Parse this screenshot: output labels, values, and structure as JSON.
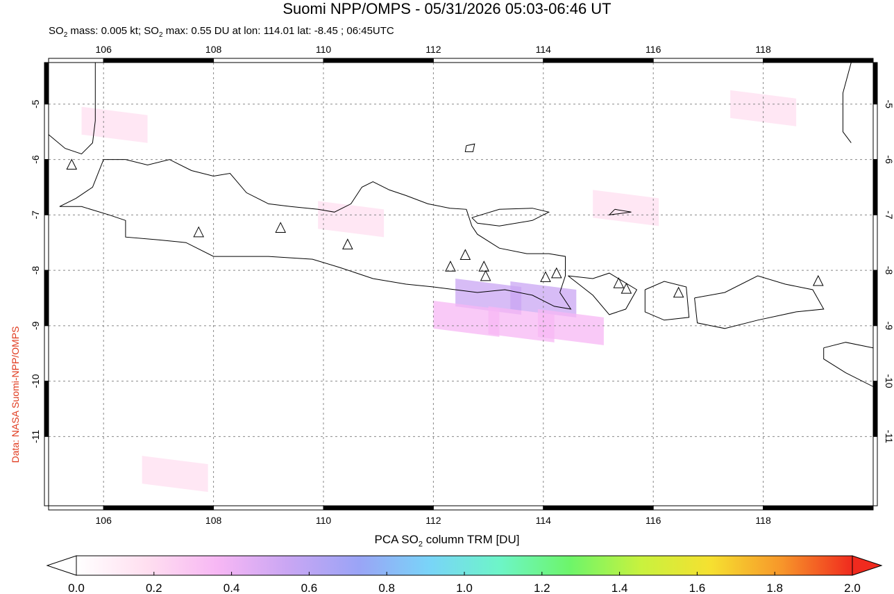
{
  "title": "Suomi NPP/OMPS - 05/31/2026 05:03-06:46 UT",
  "subtitle": {
    "so2_label": "SO",
    "so2_sub": "2",
    "mass_text": " mass: 0.005 kt; SO",
    "max_text": " max: 0.55 DU at lon: 114.01 lat: -8.45 ; 06:45UTC"
  },
  "credit": "Data: NASA Suomi-NPP/OMPS",
  "map": {
    "lon_range": [
      105,
      120
    ],
    "lat_range": [
      -12.25,
      -4.25
    ],
    "lon_ticks": [
      "106",
      "108",
      "110",
      "112",
      "114",
      "116",
      "118"
    ],
    "lat_ticks": [
      "-5",
      "-6",
      "-7",
      "-8",
      "-9",
      "-10",
      "-11"
    ],
    "lon_tick_values": [
      106,
      108,
      110,
      112,
      114,
      116,
      118
    ],
    "lat_tick_values": [
      -5,
      -6,
      -7,
      -8,
      -9,
      -10,
      -11
    ],
    "grid": "dashed",
    "volcanoes": [
      {
        "lon": 105.42,
        "lat": -6.1
      },
      {
        "lon": 107.73,
        "lat": -7.32
      },
      {
        "lon": 109.22,
        "lat": -7.24
      },
      {
        "lon": 110.44,
        "lat": -7.54
      },
      {
        "lon": 112.31,
        "lat": -7.94
      },
      {
        "lon": 112.58,
        "lat": -7.73
      },
      {
        "lon": 112.92,
        "lat": -7.94
      },
      {
        "lon": 112.95,
        "lat": -8.11
      },
      {
        "lon": 114.04,
        "lat": -8.13
      },
      {
        "lon": 114.24,
        "lat": -8.06
      },
      {
        "lon": 115.37,
        "lat": -8.24
      },
      {
        "lon": 115.51,
        "lat": -8.34
      },
      {
        "lon": 116.46,
        "lat": -8.41
      },
      {
        "lon": 119.0,
        "lat": -8.2
      }
    ]
  },
  "colorbar": {
    "title_pre": "PCA SO",
    "title_sub": "2",
    "title_post": " column TRM [DU]",
    "ticks": [
      "0.0",
      "0.2",
      "0.4",
      "0.6",
      "0.8",
      "1.0",
      "1.2",
      "1.4",
      "1.6",
      "1.8",
      "2.0"
    ],
    "tick_values": [
      0.0,
      0.2,
      0.4,
      0.6,
      0.8,
      1.0,
      1.2,
      1.4,
      1.6,
      1.8,
      2.0
    ],
    "colors": [
      "#ffffff",
      "#ffdff0",
      "#f7b7f4",
      "#c9a6f3",
      "#9aa4f6",
      "#79d4f8",
      "#6df5c8",
      "#6df56a",
      "#c8f23e",
      "#f6e030",
      "#f7962a",
      "#f02a1e"
    ],
    "under_color": "#ffffff",
    "over_color": "#f02a1e"
  },
  "so2_cells": [
    {
      "lon": 113.0,
      "lat": -8.4,
      "du": 0.55
    },
    {
      "lon": 114.0,
      "lat": -8.45,
      "du": 0.55
    },
    {
      "lon": 112.6,
      "lat": -8.8,
      "du": 0.3
    },
    {
      "lon": 113.6,
      "lat": -8.9,
      "du": 0.3
    },
    {
      "lon": 114.5,
      "lat": -8.95,
      "du": 0.3
    },
    {
      "lon": 110.5,
      "lat": -7.0,
      "du": 0.15
    },
    {
      "lon": 106.2,
      "lat": -5.3,
      "du": 0.25
    },
    {
      "lon": 107.3,
      "lat": -11.6,
      "du": 0.2
    },
    {
      "lon": 115.5,
      "lat": -6.8,
      "du": 0.15
    },
    {
      "lon": 118.0,
      "lat": -5.0,
      "du": 0.1
    }
  ],
  "coastline": {
    "java": [
      [
        105.2,
        -6.85
      ],
      [
        105.5,
        -6.7
      ],
      [
        105.8,
        -6.5
      ],
      [
        106.0,
        -6.0
      ],
      [
        106.4,
        -6.0
      ],
      [
        106.8,
        -6.1
      ],
      [
        107.2,
        -6.0
      ],
      [
        107.6,
        -6.2
      ],
      [
        108.0,
        -6.3
      ],
      [
        108.3,
        -6.25
      ],
      [
        108.6,
        -6.6
      ],
      [
        109.0,
        -6.8
      ],
      [
        109.4,
        -6.85
      ],
      [
        109.9,
        -6.9
      ],
      [
        110.2,
        -6.95
      ],
      [
        110.5,
        -6.8
      ],
      [
        110.7,
        -6.5
      ],
      [
        110.9,
        -6.4
      ],
      [
        111.2,
        -6.55
      ],
      [
        111.5,
        -6.65
      ],
      [
        111.9,
        -6.8
      ],
      [
        112.3,
        -6.88
      ],
      [
        112.6,
        -6.9
      ],
      [
        112.7,
        -7.2
      ],
      [
        112.8,
        -7.35
      ],
      [
        113.2,
        -7.6
      ],
      [
        113.7,
        -7.7
      ],
      [
        114.1,
        -7.7
      ],
      [
        114.4,
        -7.75
      ],
      [
        114.4,
        -8.1
      ],
      [
        114.3,
        -8.4
      ],
      [
        114.5,
        -8.7
      ],
      [
        114.2,
        -8.65
      ],
      [
        113.8,
        -8.45
      ],
      [
        113.3,
        -8.35
      ],
      [
        112.8,
        -8.4
      ],
      [
        112.0,
        -8.3
      ],
      [
        111.5,
        -8.25
      ],
      [
        110.9,
        -8.15
      ],
      [
        110.3,
        -7.95
      ],
      [
        109.8,
        -7.8
      ],
      [
        109.0,
        -7.75
      ],
      [
        108.4,
        -7.75
      ],
      [
        108.0,
        -7.75
      ],
      [
        107.5,
        -7.5
      ],
      [
        107.0,
        -7.45
      ],
      [
        106.4,
        -7.4
      ],
      [
        106.4,
        -7.1
      ],
      [
        106.1,
        -7.0
      ],
      [
        105.6,
        -6.85
      ],
      [
        105.2,
        -6.85
      ]
    ],
    "madura": [
      [
        112.7,
        -7.05
      ],
      [
        113.2,
        -6.9
      ],
      [
        113.8,
        -6.88
      ],
      [
        114.1,
        -6.95
      ],
      [
        113.8,
        -7.1
      ],
      [
        113.2,
        -7.2
      ],
      [
        112.8,
        -7.15
      ],
      [
        112.7,
        -7.05
      ]
    ],
    "bali": [
      [
        114.45,
        -8.1
      ],
      [
        114.9,
        -8.15
      ],
      [
        115.2,
        -8.05
      ],
      [
        115.7,
        -8.35
      ],
      [
        115.5,
        -8.7
      ],
      [
        115.2,
        -8.8
      ],
      [
        114.9,
        -8.45
      ],
      [
        114.45,
        -8.1
      ]
    ],
    "lombok": [
      [
        115.85,
        -8.35
      ],
      [
        116.2,
        -8.2
      ],
      [
        116.6,
        -8.3
      ],
      [
        116.65,
        -8.85
      ],
      [
        116.2,
        -8.9
      ],
      [
        115.85,
        -8.75
      ],
      [
        115.85,
        -8.35
      ]
    ],
    "sumbawa": [
      [
        116.75,
        -8.5
      ],
      [
        117.3,
        -8.4
      ],
      [
        117.9,
        -8.1
      ],
      [
        118.4,
        -8.25
      ],
      [
        118.9,
        -8.35
      ],
      [
        119.1,
        -8.7
      ],
      [
        118.6,
        -8.75
      ],
      [
        117.9,
        -8.9
      ],
      [
        117.3,
        -9.05
      ],
      [
        116.8,
        -8.95
      ],
      [
        116.75,
        -8.5
      ]
    ],
    "sumatra": [
      [
        105.0,
        -5.55
      ],
      [
        105.3,
        -5.8
      ],
      [
        105.6,
        -5.9
      ],
      [
        105.8,
        -5.7
      ],
      [
        105.85,
        -5.3
      ],
      [
        105.85,
        -4.25
      ]
    ],
    "borneo": [
      [
        113.5,
        -4.25
      ],
      [
        114.2,
        -4.0
      ],
      [
        115.0,
        -4.25
      ]
    ],
    "sumba": [
      [
        119.1,
        -9.4
      ],
      [
        119.5,
        -9.3
      ],
      [
        120.0,
        -9.4
      ],
      [
        120.0,
        -10.1
      ],
      [
        119.5,
        -9.85
      ],
      [
        119.1,
        -9.6
      ],
      [
        119.1,
        -9.4
      ]
    ],
    "sulawesi": [
      [
        119.6,
        -4.25
      ],
      [
        119.45,
        -4.8
      ],
      [
        119.45,
        -5.5
      ],
      [
        119.6,
        -5.7
      ]
    ],
    "bawean": [
      [
        112.6,
        -5.75
      ],
      [
        112.75,
        -5.72
      ],
      [
        112.72,
        -5.86
      ],
      [
        112.58,
        -5.86
      ],
      [
        112.6,
        -5.75
      ]
    ],
    "kangean": [
      [
        115.3,
        -6.9
      ],
      [
        115.6,
        -6.95
      ],
      [
        115.2,
        -7.0
      ],
      [
        115.3,
        -6.9
      ]
    ]
  }
}
